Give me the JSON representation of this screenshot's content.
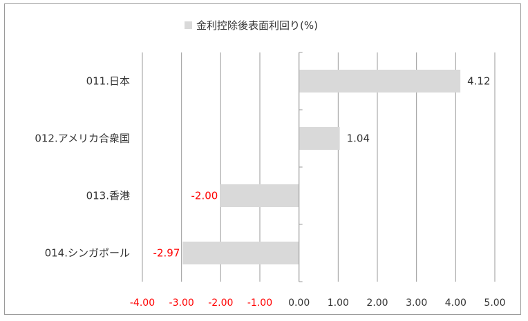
{
  "chart_data": {
    "type": "bar",
    "orientation": "horizontal",
    "legend": {
      "label": "金利控除後表面利回り(%)",
      "position": "top"
    },
    "categories": [
      "011.日本",
      "012.アメリカ合衆国",
      "013.香港",
      "014.シンガポール"
    ],
    "series": [
      {
        "name": "金利控除後表面利回り(%)",
        "values": [
          4.12,
          1.04,
          -2.0,
          -2.97
        ]
      }
    ],
    "data_labels": [
      "4.12",
      "1.04",
      "-2.00",
      "-2.97"
    ],
    "xlim": [
      -4,
      5
    ],
    "x_ticks": [
      "-4.00",
      "-3.00",
      "-2.00",
      "-1.00",
      "0.00",
      "1.00",
      "2.00",
      "3.00",
      "4.00",
      "5.00"
    ],
    "grid": "vertical",
    "colors": {
      "bar": "#d9d9d9",
      "grid": "#9a9a9a",
      "negative_text": "#ff0000",
      "text": "#333333"
    }
  }
}
